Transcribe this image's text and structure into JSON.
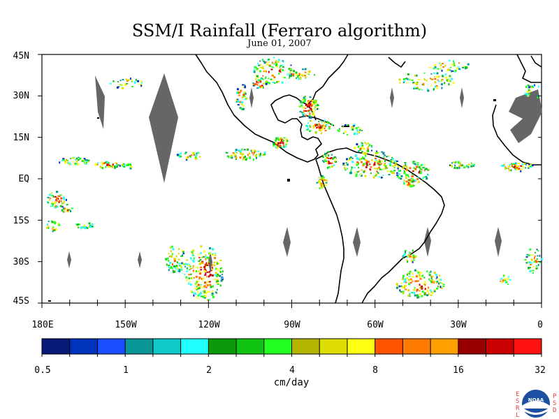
{
  "title": "SSM/I Rainfall (Ferraro algorithm)",
  "subtitle": "June 01, 2007",
  "lat_labels": [
    "45N",
    "30N",
    "15N",
    "EQ",
    "15S",
    "30S",
    "45S"
  ],
  "lon_labels": [
    "180E",
    "150W",
    "120W",
    "90W",
    "60W",
    "30W",
    "0"
  ],
  "colorbar": {
    "units": "cm/day",
    "tick_labels": [
      "0.5",
      "1",
      "2",
      "4",
      "8",
      "16",
      "32"
    ],
    "colors": [
      "#0a1a78",
      "#0033bb",
      "#1a4dff",
      "#0a9696",
      "#11c8c8",
      "#22ffff",
      "#0a9a0a",
      "#11c411",
      "#22ff22",
      "#b4b400",
      "#dcdc00",
      "#ffff11",
      "#ff5500",
      "#ff7a00",
      "#ffa000",
      "#960000",
      "#c80000",
      "#ff1111"
    ]
  },
  "rain_palette": [
    "#0033bb",
    "#0a9696",
    "#22ffff",
    "#11c411",
    "#22ff22",
    "#dcdc00",
    "#ffff11",
    "#ff7a00",
    "#ff5500",
    "#c80000"
  ],
  "missing_color": "#666666",
  "logo": {
    "left_text": "ESRL",
    "right_text": "PSD",
    "center_text": "NOAA"
  }
}
